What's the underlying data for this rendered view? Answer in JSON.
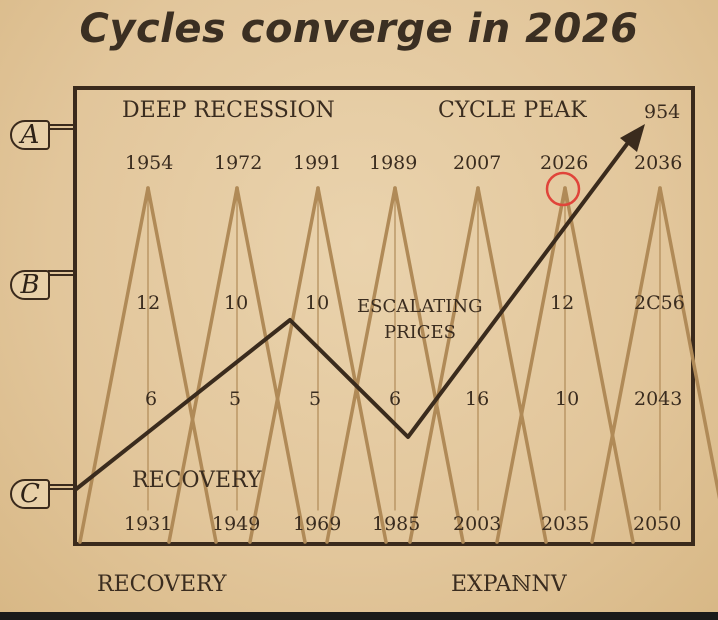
{
  "title": "Cycles converge in 2026",
  "tabs": [
    "A",
    "B",
    "C"
  ],
  "top_labels": {
    "deep_recession": "DEEP RECESSION",
    "cycle_peak": "CYCLE PEAK",
    "corner": "954"
  },
  "peak_years": [
    "1954",
    "1972",
    "1991",
    "1989",
    "2007",
    "2026",
    "2036"
  ],
  "mid_values": [
    "12",
    "10",
    "10",
    "12",
    "2C56"
  ],
  "lower_values": [
    "6",
    "5",
    "5",
    "6",
    "16",
    "10",
    "2043"
  ],
  "bottom_years": [
    "1931",
    "1949",
    "1969",
    "1985",
    "2003",
    "2035",
    "2050"
  ],
  "center_label": {
    "line1": "ESCALATING",
    "line2": "PRICES"
  },
  "inner_recovery": "RECOVERY",
  "footer": {
    "left": "RECOVERY",
    "right": "EXPAℕNV"
  },
  "colors": {
    "cycle_line": "#b08a57",
    "trend_line": "#3a2b1d",
    "highlight": "#e0443a",
    "background": "#e3c9a0"
  }
}
